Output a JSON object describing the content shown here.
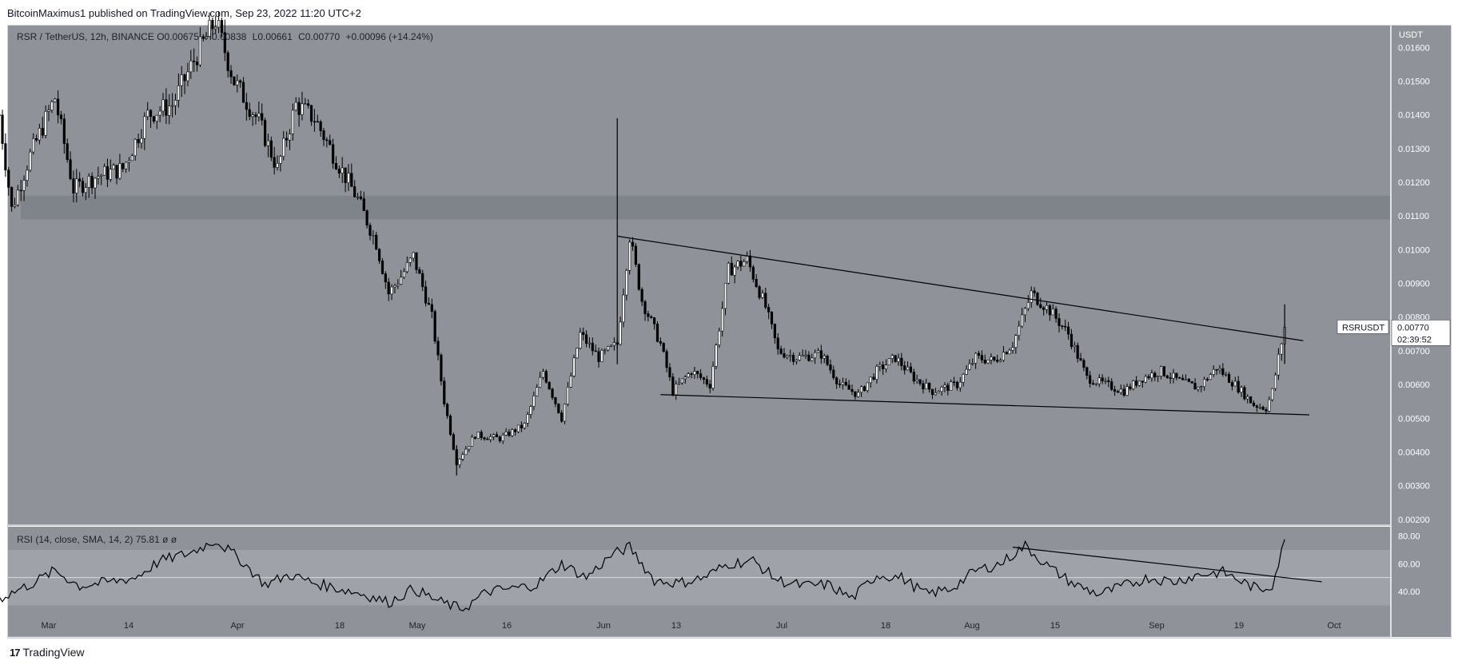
{
  "header": {
    "publisher_line": "BitcoinMaximus1 published on TradingView.com, Sep 23, 2022 11:20 UTC+2"
  },
  "legend": {
    "symbol": "RSR / TetherUS, 12h, BINANCE",
    "open_label": "O",
    "open": "0.00675",
    "high_label": "H",
    "high": "0.00838",
    "low_label": "L",
    "low": "0.00661",
    "close_label": "C",
    "close": "0.00770",
    "change": "+0.00096 (+14.24%)"
  },
  "price_axis": {
    "unit": "USDT",
    "ticks": [
      "0.01600",
      "0.01500",
      "0.01400",
      "0.01300",
      "0.01200",
      "0.01100",
      "0.01000",
      "0.00900",
      "0.00800",
      "0.00700",
      "0.00600",
      "0.00500",
      "0.00400",
      "0.00300",
      "0.00200"
    ]
  },
  "symbol_tag": {
    "name": "RSRUSDT",
    "price": "0.00770",
    "countdown": "02:39:52"
  },
  "rsi": {
    "legend": "RSI (14, close, SMA, 14, 2)",
    "value": "75.81",
    "extra": "ø ø",
    "ticks": [
      "80.00",
      "60.00",
      "40.00"
    ]
  },
  "time_axis": {
    "labels": [
      "Mar",
      "14",
      "Apr",
      "18",
      "May",
      "16",
      "Jun",
      "13",
      "Jul",
      "18",
      "Aug",
      "15",
      "Sep",
      "19",
      "Oct"
    ]
  },
  "footer": {
    "brand": "TradingView",
    "logo_text": "17"
  },
  "colors": {
    "pane_bg": "#8f9299",
    "support_zone": "#7d8087",
    "rsi_band": "#a6a9b0",
    "candle": "#000000",
    "axis_bg": "#ffffff"
  },
  "chart_data": {
    "type": "candlestick",
    "symbol": "RSR / TetherUS",
    "interval": "12h",
    "exchange": "BINANCE",
    "ylim": [
      0.0019,
      0.0166
    ],
    "ohlc_last": {
      "open": 0.00675,
      "high": 0.00838,
      "low": 0.00661,
      "close": 0.0077
    },
    "support_zone": [
      0.0109,
      0.0116
    ],
    "path": [
      [
        "Feb 27",
        0.014
      ],
      [
        "Mar 1",
        0.0112
      ],
      [
        "Mar 4",
        0.0128
      ],
      [
        "Mar 8",
        0.0145
      ],
      [
        "Mar 11",
        0.0118
      ],
      [
        "Mar 15",
        0.0122
      ],
      [
        "Mar 19",
        0.0124
      ],
      [
        "Mar 23",
        0.014
      ],
      [
        "Mar 27",
        0.0143
      ],
      [
        "Mar 31",
        0.0158
      ],
      [
        "Apr 3",
        0.0168
      ],
      [
        "Apr 6",
        0.015
      ],
      [
        "Apr 10",
        0.0138
      ],
      [
        "Apr 13",
        0.0124
      ],
      [
        "Apr 16",
        0.0143
      ],
      [
        "Apr 19",
        0.0139
      ],
      [
        "Apr 23",
        0.0125
      ],
      [
        "Apr 26",
        0.0115
      ],
      [
        "Apr 29",
        0.0102
      ],
      [
        "May 1",
        0.0087
      ],
      [
        "May 3",
        0.0092
      ],
      [
        "May 5",
        0.0098
      ],
      [
        "May 8",
        0.008
      ],
      [
        "May 10",
        0.0055
      ],
      [
        "May 12",
        0.0037
      ],
      [
        "May 15",
        0.0045
      ],
      [
        "May 19",
        0.0044
      ],
      [
        "May 23",
        0.0048
      ],
      [
        "May 26",
        0.0064
      ],
      [
        "May 29",
        0.005
      ],
      [
        "Jun 1",
        0.0075
      ],
      [
        "Jun 4",
        0.0068
      ],
      [
        "Jun 7",
        0.0072
      ],
      [
        "Jun 9",
        0.0104
      ],
      [
        "Jun 11",
        0.0085
      ],
      [
        "Jun 14",
        0.0072
      ],
      [
        "Jun 16",
        0.0058
      ],
      [
        "Jun 19",
        0.0064
      ],
      [
        "Jun 22",
        0.006
      ],
      [
        "Jun 25",
        0.0094
      ],
      [
        "Jun 28",
        0.0097
      ],
      [
        "Jul 1",
        0.0083
      ],
      [
        "Jul 3",
        0.007
      ],
      [
        "Jul 6",
        0.0068
      ],
      [
        "Jul 10",
        0.0069
      ],
      [
        "Jul 13",
        0.006
      ],
      [
        "Jul 16",
        0.0057
      ],
      [
        "Jul 19",
        0.0064
      ],
      [
        "Jul 22",
        0.0068
      ],
      [
        "Jul 25",
        0.0062
      ],
      [
        "Jul 28",
        0.0058
      ],
      [
        "Aug 1",
        0.006
      ],
      [
        "Aug 4",
        0.0068
      ],
      [
        "Aug 7",
        0.0067
      ],
      [
        "Aug 10",
        0.0072
      ],
      [
        "Aug 13",
        0.0087
      ],
      [
        "Aug 16",
        0.0082
      ],
      [
        "Aug 19",
        0.0075
      ],
      [
        "Aug 22",
        0.0062
      ],
      [
        "Aug 25",
        0.006
      ],
      [
        "Aug 28",
        0.0058
      ],
      [
        "Aug 31",
        0.0062
      ],
      [
        "Sep 3",
        0.0064
      ],
      [
        "Sep 6",
        0.0061
      ],
      [
        "Sep 9",
        0.0059
      ],
      [
        "Sep 12",
        0.0065
      ],
      [
        "Sep 15",
        0.006
      ],
      [
        "Sep 18",
        0.0054
      ],
      [
        "Sep 20",
        0.0053
      ],
      [
        "Sep 21",
        0.0058
      ],
      [
        "Sep 22",
        0.0068
      ],
      [
        "Sep 23",
        0.0077
      ]
    ],
    "wicks": [
      {
        "date": "Jun 7",
        "high": 0.0139,
        "low": 0.0066
      },
      {
        "date": "May 12",
        "high": 0.0042,
        "low": 0.0033
      },
      {
        "date": "Sep 23",
        "high": 0.00838,
        "low": 0.00661
      }
    ],
    "trendlines": [
      {
        "name": "descending resistance",
        "from": [
          "Jun 7",
          0.0104
        ],
        "to": [
          "Sep 26",
          0.0073
        ]
      },
      {
        "name": "descending support",
        "from": [
          "Jun 14",
          0.0057
        ],
        "to": [
          "Sep 27",
          0.0051
        ]
      }
    ],
    "rsi_series": {
      "ylim": [
        25,
        85
      ],
      "bands": [
        30,
        70
      ],
      "midline": 50,
      "path": [
        [
          "Feb 27",
          35
        ],
        [
          "Mar 4",
          45
        ],
        [
          "Mar 8",
          55
        ],
        [
          "Mar 12",
          44
        ],
        [
          "Mar 17",
          47
        ],
        [
          "Mar 21",
          50
        ],
        [
          "Mar 25",
          62
        ],
        [
          "Mar 30",
          68
        ],
        [
          "Apr 3",
          77
        ],
        [
          "Apr 7",
          63
        ],
        [
          "Apr 11",
          45
        ],
        [
          "Apr 15",
          52
        ],
        [
          "Apr 19",
          46
        ],
        [
          "Apr 23",
          42
        ],
        [
          "Apr 27",
          38
        ],
        [
          "May 1",
          32
        ],
        [
          "May 5",
          42
        ],
        [
          "May 9",
          33
        ],
        [
          "May 13",
          27
        ],
        [
          "May 17",
          40
        ],
        [
          "May 21",
          42
        ],
        [
          "May 25",
          45
        ],
        [
          "May 29",
          60
        ],
        [
          "Jun 2",
          50
        ],
        [
          "Jun 6",
          66
        ],
        [
          "Jun 9",
          72
        ],
        [
          "Jun 13",
          48
        ],
        [
          "Jun 17",
          46
        ],
        [
          "Jun 21",
          50
        ],
        [
          "Jun 25",
          60
        ],
        [
          "Jun 29",
          62
        ],
        [
          "Jul 3",
          48
        ],
        [
          "Jul 7",
          44
        ],
        [
          "Jul 11",
          45
        ],
        [
          "Jul 15",
          35
        ],
        [
          "Jul 19",
          52
        ],
        [
          "Jul 23",
          50
        ],
        [
          "Jul 27",
          38
        ],
        [
          "Jul 31",
          42
        ],
        [
          "Aug 4",
          55
        ],
        [
          "Aug 8",
          60
        ],
        [
          "Aug 12",
          73
        ],
        [
          "Aug 16",
          57
        ],
        [
          "Aug 20",
          45
        ],
        [
          "Aug 24",
          38
        ],
        [
          "Aug 28",
          44
        ],
        [
          "Sep 1",
          50
        ],
        [
          "Sep 5",
          47
        ],
        [
          "Sep 9",
          52
        ],
        [
          "Sep 13",
          54
        ],
        [
          "Sep 17",
          45
        ],
        [
          "Sep 19",
          41
        ],
        [
          "Sep 21",
          45
        ],
        [
          "Sep 23",
          76
        ]
      ],
      "trendline": {
        "from": [
          "Aug 10",
          72
        ],
        "to": [
          "Sep 29",
          47
        ]
      }
    }
  }
}
